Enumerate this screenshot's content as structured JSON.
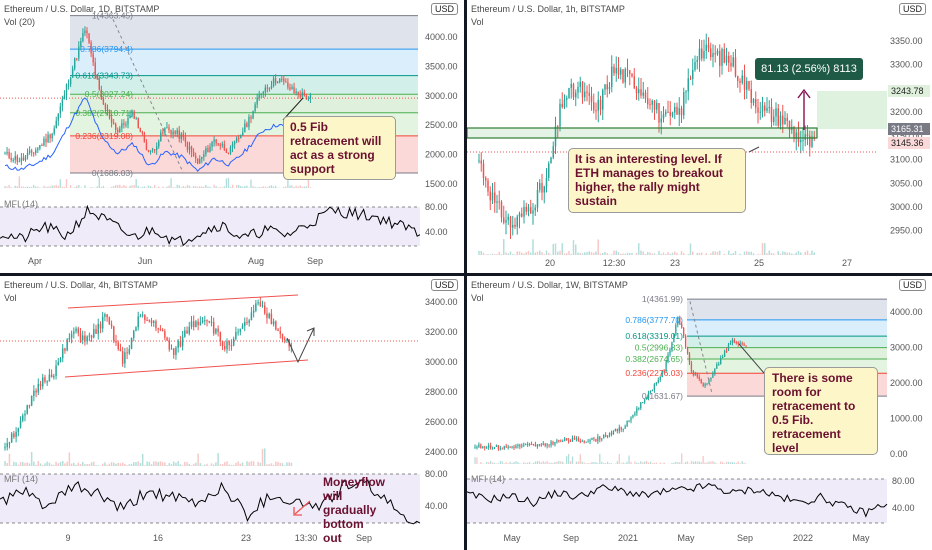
{
  "panels": {
    "tl": {
      "title": "Ethereum / U.S. Dollar, 1D, BITSTAMP",
      "vol": "Vol (20)",
      "indicator": "MFI (14)",
      "currency": "USD",
      "fib_levels": [
        {
          "label": "1(4363.45)",
          "price": 4363.45,
          "color": "#787b86"
        },
        {
          "label": "0.786(3794.4)",
          "price": 3794.4,
          "color": "#2196f3"
        },
        {
          "label": "0.618(3343.73)",
          "price": 3343.73,
          "color": "#009688"
        },
        {
          "label": "0.5(3027.24)",
          "price": 3027.24,
          "color": "#4caf50"
        },
        {
          "label": "0.382(2710.71)",
          "price": 2710.71,
          "color": "#4caf50"
        },
        {
          "label": "0.236(2319.08)",
          "price": 2319.08,
          "color": "#f44336"
        },
        {
          "label": "0(1686.03)",
          "price": 1686.03,
          "color": "#787b86"
        }
      ],
      "y_ticks": [
        "4000.00",
        "3500.00",
        "3000.00",
        "2500.00",
        "2000.00",
        "1500.00"
      ],
      "ind_ticks": [
        "80.00",
        "40.00"
      ],
      "x_ticks": [
        "Apr",
        "Jun",
        "Aug",
        "Sep"
      ],
      "note": "0.5 Fib retracement will act as a strong support"
    },
    "tr": {
      "title": "Ethereum / U.S. Dollar, 1h, BITSTAMP",
      "vol": "Vol",
      "currency": "USD",
      "y_ticks": [
        "3350.00",
        "3300.00",
        "3250.00",
        "3200.00",
        "3150.00",
        "3100.00",
        "3050.00",
        "3000.00",
        "2950.00"
      ],
      "x_ticks": [
        "20",
        "12:30",
        "23",
        "25",
        "27"
      ],
      "price_tags": [
        "3243.78",
        "3165.31",
        "3145.36"
      ],
      "measure_label": "81.13 (2.56%) 8113",
      "note": "It is an interesting level. If ETH manages to breakout higher, the rally might sustain"
    },
    "bl": {
      "title": "Ethereum / U.S. Dollar, 4h, BITSTAMP",
      "vol": "Vol",
      "indicator": "MFI (14)",
      "currency": "USD",
      "y_ticks": [
        "3400.00",
        "3200.00",
        "3000.00",
        "2800.00",
        "2600.00",
        "2400.00"
      ],
      "ind_ticks": [
        "80.00",
        "40.00"
      ],
      "x_ticks": [
        "9",
        "16",
        "23",
        "13:30",
        "Sep"
      ],
      "note": "Moneyflow will gradually bottom out"
    },
    "br": {
      "title": "Ethereum / U.S. Dollar, 1W, BITSTAMP",
      "vol": "Vol",
      "indicator": "MFI (14)",
      "currency": "USD",
      "fib_levels": [
        {
          "label": "1(4361.99)",
          "price": 4361.99,
          "color": "#787b86"
        },
        {
          "label": "0.786(3777.70)",
          "price": 3777.7,
          "color": "#2196f3"
        },
        {
          "label": "0.618(3319.01)",
          "price": 3319.01,
          "color": "#009688"
        },
        {
          "label": "0.5(2996.83)",
          "price": 2996.83,
          "color": "#4caf50"
        },
        {
          "label": "0.382(2674.65)",
          "price": 2674.65,
          "color": "#4caf50"
        },
        {
          "label": "0.236(2276.03)",
          "price": 2276.03,
          "color": "#f44336"
        },
        {
          "label": "0(1631.67)",
          "price": 1631.67,
          "color": "#787b86"
        }
      ],
      "y_ticks": [
        "4000.00",
        "3000.00",
        "2000.00",
        "1000.00",
        "0.00"
      ],
      "ind_ticks": [
        "80.00",
        "40.00"
      ],
      "x_ticks": [
        "May",
        "Sep",
        "2021",
        "May",
        "Sep",
        "2022",
        "May"
      ],
      "note": "There is some room for retracement to 0.5 Fib. retracement level"
    }
  },
  "colors": {
    "up": "#26a69a",
    "down": "#ef5350",
    "note_text": "#6b1030",
    "note_bg": "#fcf6c8",
    "indicator_bg": "#efebf9",
    "indicator_line": "#000000",
    "trend_line": "#ef5350"
  }
}
